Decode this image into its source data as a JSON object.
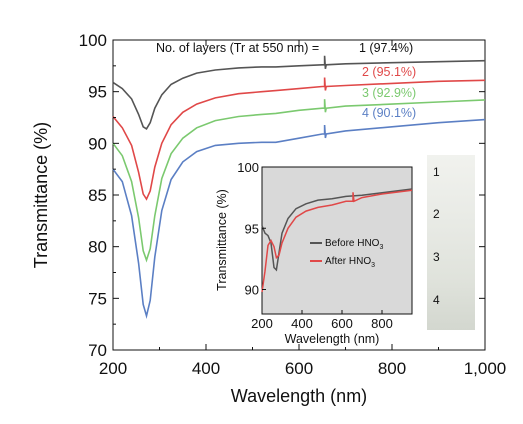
{
  "chart_data": [
    {
      "type": "line",
      "xlabel": "Wavelength (nm)",
      "ylabel": "Transmittance (%)",
      "xlim": [
        200,
        1000
      ],
      "ylim": [
        70,
        100
      ],
      "x_ticks": [
        "200",
        "400",
        "600",
        "800",
        "1,000"
      ],
      "y_ticks": [
        "70",
        "75",
        "80",
        "85",
        "90",
        "95",
        "100"
      ],
      "annotation_header": "No. of layers (Tr at 550 nm) =",
      "series": [
        {
          "name": "1 (97.4%)",
          "color": "#555555",
          "x": [
            200,
            220,
            240,
            255,
            265,
            272,
            280,
            290,
            305,
            325,
            350,
            380,
            420,
            470,
            520,
            550,
            600,
            650,
            700,
            800,
            900,
            1000
          ],
          "y": [
            95.9,
            95.3,
            94.3,
            92.8,
            91.6,
            91.4,
            92.0,
            93.4,
            94.7,
            95.7,
            96.3,
            96.8,
            97.1,
            97.3,
            97.4,
            97.4,
            97.5,
            97.6,
            97.7,
            97.8,
            97.9,
            98.0
          ]
        },
        {
          "name": "2 (95.1%)",
          "color": "#e04848",
          "x": [
            200,
            220,
            240,
            255,
            265,
            272,
            280,
            290,
            305,
            325,
            350,
            380,
            420,
            470,
            520,
            550,
            600,
            650,
            700,
            800,
            900,
            1000
          ],
          "y": [
            92.6,
            91.5,
            89.8,
            87.2,
            85.1,
            84.6,
            85.4,
            87.7,
            90.0,
            91.8,
            93.0,
            93.8,
            94.4,
            94.8,
            95.0,
            95.1,
            95.3,
            95.5,
            95.6,
            95.8,
            96.0,
            96.1
          ]
        },
        {
          "name": "3 (92.9%)",
          "color": "#7bc96f",
          "x": [
            200,
            220,
            240,
            255,
            265,
            272,
            280,
            290,
            305,
            325,
            350,
            380,
            420,
            470,
            520,
            550,
            600,
            650,
            700,
            800,
            900,
            1000
          ],
          "y": [
            90.0,
            88.8,
            86.3,
            82.8,
            79.6,
            78.7,
            79.8,
            83.0,
            86.6,
            89.0,
            90.5,
            91.5,
            92.2,
            92.6,
            92.8,
            92.9,
            93.2,
            93.4,
            93.6,
            93.8,
            94.0,
            94.2
          ]
        },
        {
          "name": "4 (90.1%)",
          "color": "#5b7fc4",
          "x": [
            200,
            220,
            240,
            255,
            265,
            272,
            280,
            290,
            305,
            325,
            350,
            380,
            420,
            470,
            520,
            550,
            600,
            650,
            700,
            800,
            900,
            1000
          ],
          "y": [
            87.5,
            86.3,
            83.0,
            78.4,
            74.4,
            73.3,
            74.8,
            79.0,
            83.5,
            86.5,
            88.2,
            89.2,
            89.8,
            90.0,
            90.1,
            90.1,
            90.5,
            90.9,
            91.2,
            91.6,
            92.0,
            92.3
          ]
        }
      ],
      "spike_x": 655
    },
    {
      "type": "line",
      "xlabel": "Wavelength (nm)",
      "ylabel": "Transmittance (%)",
      "xlim": [
        200,
        950
      ],
      "ylim": [
        88,
        100
      ],
      "x_ticks": [
        "200",
        "400",
        "600",
        "800"
      ],
      "y_ticks": [
        "90",
        "95",
        "100"
      ],
      "background": "#d9d9d9",
      "legend_placement": "lower-center",
      "series": [
        {
          "name": "Before HNO",
          "subscript": "3",
          "color": "#555555",
          "x": [
            200,
            215,
            230,
            245,
            260,
            272,
            285,
            300,
            330,
            370,
            420,
            480,
            550,
            620,
            700,
            800,
            900,
            950
          ],
          "y": [
            95.2,
            94.6,
            94.4,
            93.8,
            91.8,
            91.6,
            93.0,
            94.6,
            95.8,
            96.6,
            97.0,
            97.3,
            97.4,
            97.6,
            97.7,
            97.9,
            98.1,
            98.2
          ]
        },
        {
          "name": "After HNO",
          "subscript": "3",
          "color": "#e04848",
          "x": [
            200,
            215,
            230,
            245,
            260,
            272,
            285,
            300,
            330,
            370,
            420,
            480,
            550,
            620,
            700,
            800,
            900,
            950
          ],
          "y": [
            89.8,
            91.5,
            93.6,
            94.0,
            93.5,
            92.6,
            92.8,
            93.8,
            95.0,
            95.9,
            96.4,
            96.7,
            96.9,
            97.2,
            97.5,
            97.8,
            98.0,
            98.1
          ]
        }
      ],
      "spike_x": 655
    }
  ],
  "photo": {
    "labels": [
      "1",
      "2",
      "3",
      "4"
    ]
  }
}
